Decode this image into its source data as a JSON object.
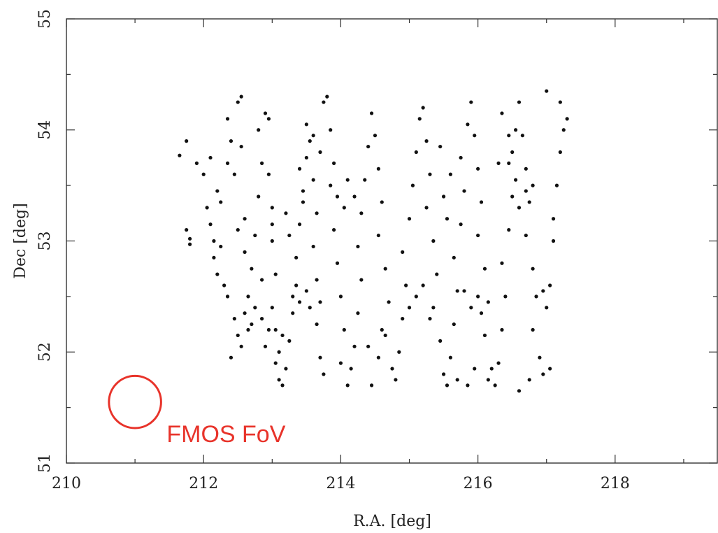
{
  "chart_data": {
    "type": "scatter",
    "xlabel": "R.A. [deg]",
    "ylabel": "Dec [deg]",
    "xlim": [
      210,
      219.5
    ],
    "ylim": [
      51,
      55
    ],
    "xticks": [
      210,
      212,
      214,
      216,
      218
    ],
    "yticks": [
      51,
      52,
      53,
      54,
      55
    ],
    "xtick_labels": [
      "210",
      "212",
      "214",
      "216",
      "218"
    ],
    "ytick_labels": [
      "51",
      "52",
      "53",
      "54",
      "55"
    ],
    "grid": false,
    "point_color": "#111111",
    "points": [
      [
        211.65,
        53.77
      ],
      [
        211.75,
        53.9
      ],
      [
        211.75,
        53.1
      ],
      [
        211.8,
        52.97
      ],
      [
        211.8,
        53.02
      ],
      [
        211.9,
        53.7
      ],
      [
        212.0,
        53.6
      ],
      [
        212.1,
        53.75
      ],
      [
        212.05,
        53.3
      ],
      [
        212.1,
        53.15
      ],
      [
        212.15,
        53.0
      ],
      [
        212.15,
        52.85
      ],
      [
        212.2,
        52.7
      ],
      [
        212.2,
        53.45
      ],
      [
        212.25,
        53.35
      ],
      [
        212.3,
        52.6
      ],
      [
        212.35,
        52.5
      ],
      [
        212.35,
        54.1
      ],
      [
        212.4,
        53.9
      ],
      [
        212.45,
        53.6
      ],
      [
        212.5,
        54.25
      ],
      [
        212.55,
        54.3
      ],
      [
        212.6,
        53.2
      ],
      [
        212.6,
        52.9
      ],
      [
        212.45,
        52.3
      ],
      [
        212.5,
        52.15
      ],
      [
        212.6,
        52.35
      ],
      [
        212.65,
        52.2
      ],
      [
        212.7,
        52.25
      ],
      [
        212.75,
        52.4
      ],
      [
        212.7,
        52.75
      ],
      [
        212.75,
        53.05
      ],
      [
        212.8,
        53.4
      ],
      [
        212.85,
        53.7
      ],
      [
        212.8,
        54.0
      ],
      [
        212.9,
        54.15
      ],
      [
        212.95,
        54.1
      ],
      [
        212.95,
        53.6
      ],
      [
        213.0,
        53.3
      ],
      [
        213.0,
        53.0
      ],
      [
        213.05,
        52.7
      ],
      [
        213.0,
        52.4
      ],
      [
        213.05,
        52.2
      ],
      [
        213.1,
        52.0
      ],
      [
        213.05,
        51.9
      ],
      [
        213.1,
        51.75
      ],
      [
        213.15,
        51.7
      ],
      [
        213.2,
        51.85
      ],
      [
        213.25,
        52.1
      ],
      [
        213.3,
        52.35
      ],
      [
        213.35,
        52.6
      ],
      [
        213.35,
        52.85
      ],
      [
        213.4,
        53.15
      ],
      [
        213.45,
        53.45
      ],
      [
        213.5,
        53.75
      ],
      [
        213.5,
        54.05
      ],
      [
        213.55,
        53.9
      ],
      [
        213.6,
        53.55
      ],
      [
        213.65,
        53.25
      ],
      [
        213.6,
        52.95
      ],
      [
        213.65,
        52.65
      ],
      [
        213.7,
        52.45
      ],
      [
        213.65,
        52.25
      ],
      [
        213.7,
        51.95
      ],
      [
        213.75,
        51.8
      ],
      [
        213.8,
        54.3
      ],
      [
        213.85,
        54.0
      ],
      [
        213.9,
        53.7
      ],
      [
        213.95,
        53.4
      ],
      [
        213.9,
        53.1
      ],
      [
        213.95,
        52.8
      ],
      [
        214.0,
        52.5
      ],
      [
        214.05,
        52.2
      ],
      [
        214.0,
        51.9
      ],
      [
        214.1,
        51.7
      ],
      [
        214.15,
        51.85
      ],
      [
        214.2,
        52.05
      ],
      [
        214.25,
        52.35
      ],
      [
        214.3,
        52.65
      ],
      [
        214.25,
        52.95
      ],
      [
        214.3,
        53.25
      ],
      [
        214.35,
        53.55
      ],
      [
        214.4,
        53.85
      ],
      [
        214.45,
        54.15
      ],
      [
        214.5,
        53.95
      ],
      [
        214.55,
        53.65
      ],
      [
        214.6,
        53.35
      ],
      [
        214.55,
        53.05
      ],
      [
        214.65,
        52.75
      ],
      [
        214.7,
        52.45
      ],
      [
        214.65,
        52.15
      ],
      [
        214.75,
        51.85
      ],
      [
        214.8,
        51.75
      ],
      [
        214.85,
        52.0
      ],
      [
        214.9,
        52.3
      ],
      [
        214.95,
        52.6
      ],
      [
        214.9,
        52.9
      ],
      [
        215.0,
        53.2
      ],
      [
        215.05,
        53.5
      ],
      [
        215.1,
        53.8
      ],
      [
        215.15,
        54.1
      ],
      [
        215.2,
        54.2
      ],
      [
        215.25,
        53.9
      ],
      [
        215.3,
        53.6
      ],
      [
        215.25,
        53.3
      ],
      [
        215.35,
        53.0
      ],
      [
        215.4,
        52.7
      ],
      [
        215.35,
        52.4
      ],
      [
        215.45,
        52.1
      ],
      [
        215.5,
        51.8
      ],
      [
        215.55,
        51.7
      ],
      [
        215.6,
        51.95
      ],
      [
        215.65,
        52.25
      ],
      [
        215.7,
        52.55
      ],
      [
        215.65,
        52.85
      ],
      [
        215.75,
        53.15
      ],
      [
        215.8,
        53.45
      ],
      [
        215.75,
        53.75
      ],
      [
        215.85,
        54.05
      ],
      [
        215.9,
        54.25
      ],
      [
        215.95,
        53.95
      ],
      [
        216.0,
        53.65
      ],
      [
        216.05,
        53.35
      ],
      [
        216.0,
        53.05
      ],
      [
        216.1,
        52.75
      ],
      [
        216.15,
        52.45
      ],
      [
        216.1,
        52.15
      ],
      [
        216.2,
        51.85
      ],
      [
        216.25,
        51.7
      ],
      [
        216.3,
        51.9
      ],
      [
        216.35,
        52.2
      ],
      [
        216.4,
        52.5
      ],
      [
        216.35,
        52.8
      ],
      [
        216.45,
        53.1
      ],
      [
        216.5,
        53.4
      ],
      [
        216.45,
        53.7
      ],
      [
        216.55,
        54.0
      ],
      [
        216.6,
        54.25
      ],
      [
        216.65,
        53.95
      ],
      [
        216.7,
        53.65
      ],
      [
        216.75,
        53.35
      ],
      [
        216.7,
        53.05
      ],
      [
        216.8,
        52.75
      ],
      [
        216.85,
        52.5
      ],
      [
        216.8,
        52.2
      ],
      [
        216.9,
        51.95
      ],
      [
        216.95,
        51.8
      ],
      [
        217.0,
        52.4
      ],
      [
        217.05,
        52.6
      ],
      [
        217.1,
        53.2
      ],
      [
        217.15,
        53.5
      ],
      [
        217.2,
        53.8
      ],
      [
        217.25,
        54.0
      ],
      [
        217.2,
        54.25
      ],
      [
        217.3,
        54.1
      ],
      [
        217.0,
        54.35
      ],
      [
        217.1,
        53.0
      ],
      [
        216.95,
        52.55
      ],
      [
        217.05,
        51.85
      ],
      [
        216.6,
        51.65
      ],
      [
        216.75,
        51.75
      ],
      [
        213.3,
        52.5
      ],
      [
        213.5,
        52.55
      ],
      [
        213.55,
        52.4
      ],
      [
        213.4,
        52.45
      ],
      [
        215.9,
        52.4
      ],
      [
        216.0,
        52.5
      ],
      [
        215.8,
        52.55
      ],
      [
        216.05,
        52.35
      ],
      [
        216.55,
        53.55
      ],
      [
        216.7,
        53.45
      ],
      [
        216.6,
        53.3
      ],
      [
        216.8,
        53.5
      ],
      [
        214.05,
        53.3
      ],
      [
        214.2,
        53.4
      ],
      [
        214.1,
        53.55
      ],
      [
        213.85,
        53.5
      ],
      [
        212.95,
        52.2
      ],
      [
        212.85,
        52.3
      ],
      [
        213.15,
        52.15
      ],
      [
        212.9,
        52.05
      ],
      [
        213.2,
        53.25
      ],
      [
        213.0,
        53.15
      ],
      [
        213.25,
        53.05
      ],
      [
        213.45,
        53.35
      ],
      [
        215.1,
        52.5
      ],
      [
        215.2,
        52.6
      ],
      [
        215.0,
        52.4
      ],
      [
        215.3,
        52.3
      ],
      [
        212.35,
        53.7
      ],
      [
        212.55,
        53.85
      ],
      [
        212.25,
        52.95
      ],
      [
        212.5,
        53.1
      ],
      [
        214.4,
        52.05
      ],
      [
        214.55,
        51.95
      ],
      [
        214.45,
        51.7
      ],
      [
        214.6,
        52.2
      ],
      [
        215.7,
        51.75
      ],
      [
        215.85,
        51.7
      ],
      [
        215.95,
        51.85
      ],
      [
        216.15,
        51.75
      ],
      [
        216.45,
        53.95
      ],
      [
        216.3,
        53.7
      ],
      [
        216.35,
        54.15
      ],
      [
        216.5,
        53.8
      ],
      [
        213.75,
        54.25
      ],
      [
        213.6,
        53.95
      ],
      [
        213.4,
        53.65
      ],
      [
        213.7,
        53.8
      ],
      [
        215.45,
        53.85
      ],
      [
        215.6,
        53.6
      ],
      [
        215.5,
        53.4
      ],
      [
        215.55,
        53.2
      ],
      [
        212.4,
        51.95
      ],
      [
        212.65,
        52.5
      ],
      [
        212.85,
        52.65
      ],
      [
        212.55,
        52.05
      ]
    ]
  },
  "annotation": {
    "label": "FMOS FoV",
    "center": [
      211.0,
      51.55
    ],
    "radius_deg": 0.38,
    "color": "#e8332a"
  }
}
